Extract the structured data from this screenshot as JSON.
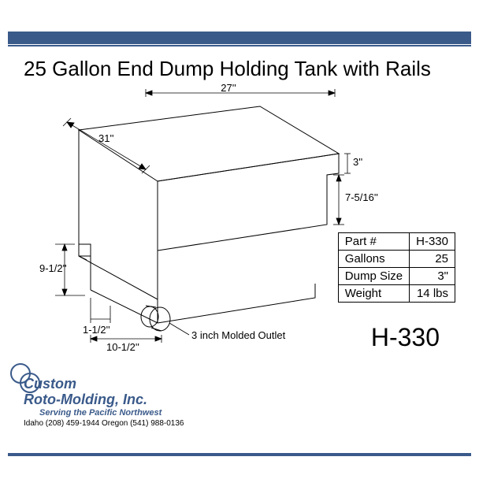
{
  "title": "25 Gallon End Dump Holding Tank with Rails",
  "part_label": "H-330",
  "dimensions": {
    "width": "27''",
    "depth": "31''",
    "lip": "3''",
    "side": "7-5/16''",
    "height": "9-1/2''",
    "inset": "1-1/2''",
    "outlet_offset": "10-1/2''",
    "outlet_label": "3 inch Molded Outlet"
  },
  "spec_table": {
    "rows": [
      [
        "Part #",
        "H-330"
      ],
      [
        "Gallons",
        "25"
      ],
      [
        "Dump Size",
        "3\""
      ],
      [
        "Weight",
        "14 lbs"
      ]
    ]
  },
  "footer": {
    "company": "Custom",
    "company2": "Roto-Molding, Inc.",
    "tagline": "Serving the Pacific Northwest",
    "contact": "Idaho (208) 459-1944   Oregon (541) 988-0136"
  },
  "colors": {
    "bar": "#3a5a8a",
    "line": "#000000",
    "text": "#000000",
    "company": "#3a5a8a"
  }
}
